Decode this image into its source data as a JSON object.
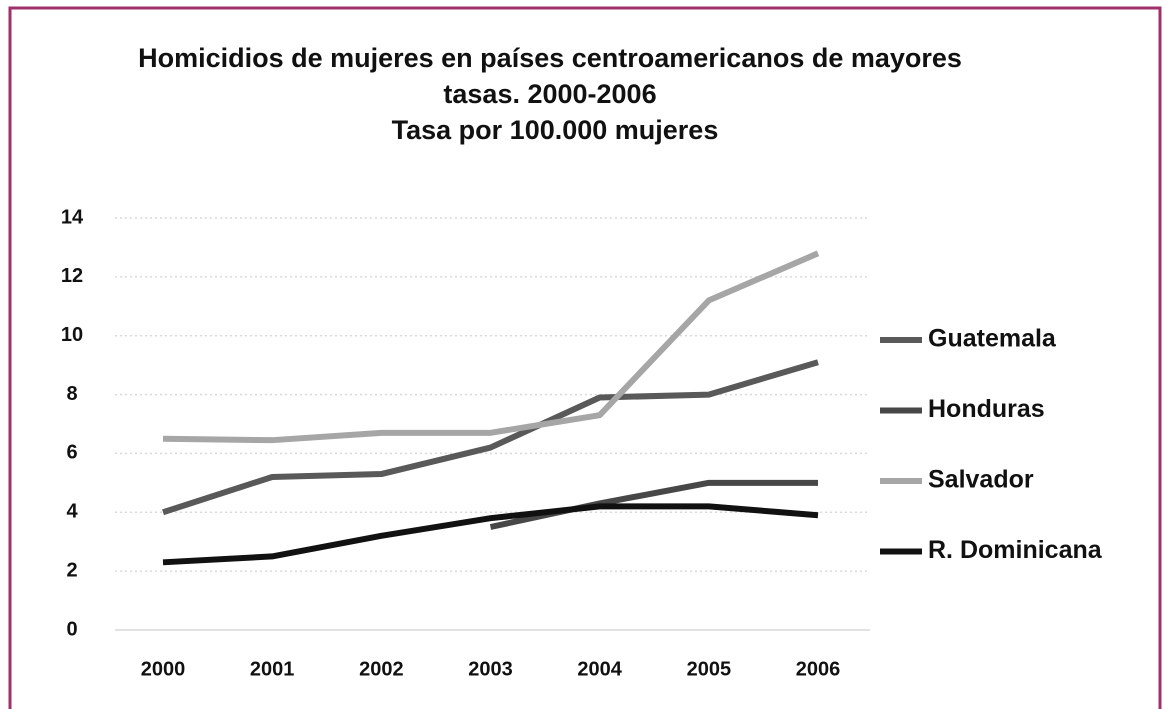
{
  "chart_data": {
    "type": "line",
    "title": [
      "Homicidios de mujeres en países centroamericanos de mayores",
      "tasas. 2000-2006",
      "Tasa por 100.000 mujeres"
    ],
    "categories": [
      "2000",
      "2001",
      "2002",
      "2003",
      "2004",
      "2005",
      "2006"
    ],
    "series": [
      {
        "name": "Guatemala",
        "color": "#595959",
        "values": [
          4.0,
          5.2,
          5.3,
          6.2,
          7.9,
          8.0,
          9.1
        ]
      },
      {
        "name": "Honduras",
        "color": "#474747",
        "values": [
          null,
          null,
          null,
          3.5,
          4.3,
          5.0,
          5.0
        ]
      },
      {
        "name": "Salvador",
        "color": "#a6a6a6",
        "values": [
          6.5,
          6.45,
          6.7,
          6.7,
          7.3,
          11.2,
          12.8
        ]
      },
      {
        "name": "R. Dominicana",
        "color": "#111111",
        "values": [
          2.3,
          2.5,
          3.2,
          3.8,
          4.2,
          4.2,
          3.9
        ]
      }
    ],
    "ylim": [
      0,
      14
    ],
    "yticks": [
      0,
      2,
      4,
      6,
      8,
      10,
      12,
      14
    ],
    "grid": true,
    "legend": "right"
  }
}
